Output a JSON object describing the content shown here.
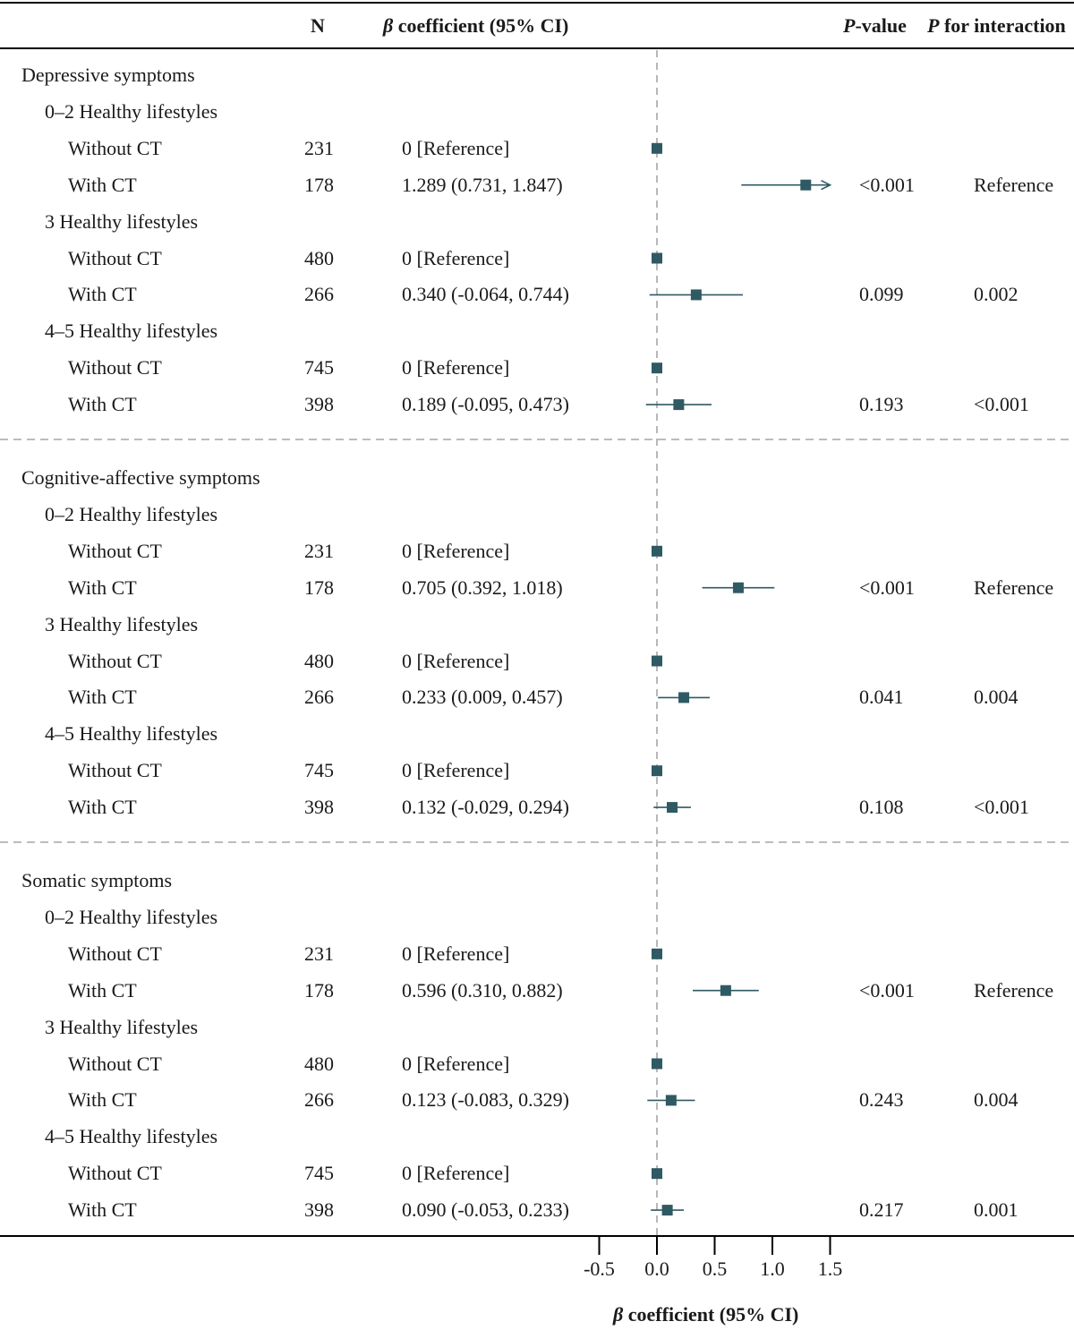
{
  "headers": {
    "n": "N",
    "beta_symbol": "β",
    "beta_rest": " coefficient (95% CI)",
    "p_italic": "P",
    "p_rest": "-value",
    "pint_italic": "P",
    "pint_rest": " for interaction"
  },
  "colors": {
    "marker": "#2f5a63",
    "rule": "#000000",
    "dashed": "#a6a6a6"
  },
  "chart_data": {
    "type": "forest",
    "x_axis": {
      "label_symbol": "β",
      "label_rest": " coefficient (95% CI)",
      "ticks": [
        -0.5,
        0.0,
        0.5,
        1.0,
        1.5
      ],
      "tick_labels": [
        "-0.5",
        "0.0",
        "0.5",
        "1.0",
        "1.5"
      ],
      "reference_line": 0
    },
    "sections": [
      {
        "title": "Depressive symptoms",
        "groups": [
          {
            "label": "0–2 Healthy lifestyles",
            "p_interaction": "Reference",
            "rows": [
              {
                "label": "Without CT",
                "n": "231",
                "ci_text": "0 [Reference]",
                "beta": 0,
                "lower": null,
                "upper": null,
                "p": ""
              },
              {
                "label": "With CT",
                "n": "178",
                "ci_text": "1.289 (0.731, 1.847)",
                "beta": 1.289,
                "lower": 0.731,
                "upper": 1.847,
                "p": "<0.001",
                "arrow": true
              }
            ]
          },
          {
            "label": "3 Healthy lifestyles",
            "p_interaction": "0.002",
            "rows": [
              {
                "label": "Without CT",
                "n": "480",
                "ci_text": "0 [Reference]",
                "beta": 0,
                "lower": null,
                "upper": null,
                "p": ""
              },
              {
                "label": "With CT",
                "n": "266",
                "ci_text": "0.340 (-0.064, 0.744)",
                "beta": 0.34,
                "lower": -0.064,
                "upper": 0.744,
                "p": "0.099"
              }
            ]
          },
          {
            "label": "4–5 Healthy lifestyles",
            "p_interaction": "<0.001",
            "rows": [
              {
                "label": "Without CT",
                "n": "745",
                "ci_text": "0 [Reference]",
                "beta": 0,
                "lower": null,
                "upper": null,
                "p": ""
              },
              {
                "label": "With CT",
                "n": "398",
                "ci_text": "0.189 (-0.095, 0.473)",
                "beta": 0.189,
                "lower": -0.095,
                "upper": 0.473,
                "p": "0.193"
              }
            ]
          }
        ]
      },
      {
        "title": "Cognitive-affective symptoms",
        "groups": [
          {
            "label": "0–2 Healthy lifestyles",
            "p_interaction": "Reference",
            "rows": [
              {
                "label": "Without CT",
                "n": "231",
                "ci_text": "0 [Reference]",
                "beta": 0,
                "lower": null,
                "upper": null,
                "p": ""
              },
              {
                "label": "With CT",
                "n": "178",
                "ci_text": "0.705 (0.392, 1.018)",
                "beta": 0.705,
                "lower": 0.392,
                "upper": 1.018,
                "p": "<0.001"
              }
            ]
          },
          {
            "label": "3 Healthy lifestyles",
            "p_interaction": "0.004",
            "rows": [
              {
                "label": "Without CT",
                "n": "480",
                "ci_text": "0 [Reference]",
                "beta": 0,
                "lower": null,
                "upper": null,
                "p": ""
              },
              {
                "label": "With CT",
                "n": "266",
                "ci_text": "0.233 (0.009, 0.457)",
                "beta": 0.233,
                "lower": 0.009,
                "upper": 0.457,
                "p": "0.041"
              }
            ]
          },
          {
            "label": "4–5 Healthy lifestyles",
            "p_interaction": "<0.001",
            "rows": [
              {
                "label": "Without CT",
                "n": "745",
                "ci_text": "0 [Reference]",
                "beta": 0,
                "lower": null,
                "upper": null,
                "p": ""
              },
              {
                "label": "With CT",
                "n": "398",
                "ci_text": "0.132 (-0.029, 0.294)",
                "beta": 0.132,
                "lower": -0.029,
                "upper": 0.294,
                "p": "0.108"
              }
            ]
          }
        ]
      },
      {
        "title": "Somatic symptoms",
        "groups": [
          {
            "label": "0–2 Healthy lifestyles",
            "p_interaction": "Reference",
            "rows": [
              {
                "label": "Without CT",
                "n": "231",
                "ci_text": "0 [Reference]",
                "beta": 0,
                "lower": null,
                "upper": null,
                "p": ""
              },
              {
                "label": "With CT",
                "n": "178",
                "ci_text": "0.596 (0.310, 0.882)",
                "beta": 0.596,
                "lower": 0.31,
                "upper": 0.882,
                "p": "<0.001"
              }
            ]
          },
          {
            "label": "3 Healthy lifestyles",
            "p_interaction": "0.004",
            "rows": [
              {
                "label": "Without CT",
                "n": "480",
                "ci_text": "0 [Reference]",
                "beta": 0,
                "lower": null,
                "upper": null,
                "p": ""
              },
              {
                "label": "With CT",
                "n": "266",
                "ci_text": "0.123 (-0.083, 0.329)",
                "beta": 0.123,
                "lower": -0.083,
                "upper": 0.329,
                "p": "0.243"
              }
            ]
          },
          {
            "label": "4–5 Healthy lifestyles",
            "p_interaction": "0.001",
            "rows": [
              {
                "label": "Without CT",
                "n": "745",
                "ci_text": "0 [Reference]",
                "beta": 0,
                "lower": null,
                "upper": null,
                "p": ""
              },
              {
                "label": "With CT",
                "n": "398",
                "ci_text": "0.090 (-0.053, 0.233)",
                "beta": 0.09,
                "lower": -0.053,
                "upper": 0.233,
                "p": "0.217"
              }
            ]
          }
        ]
      }
    ]
  }
}
